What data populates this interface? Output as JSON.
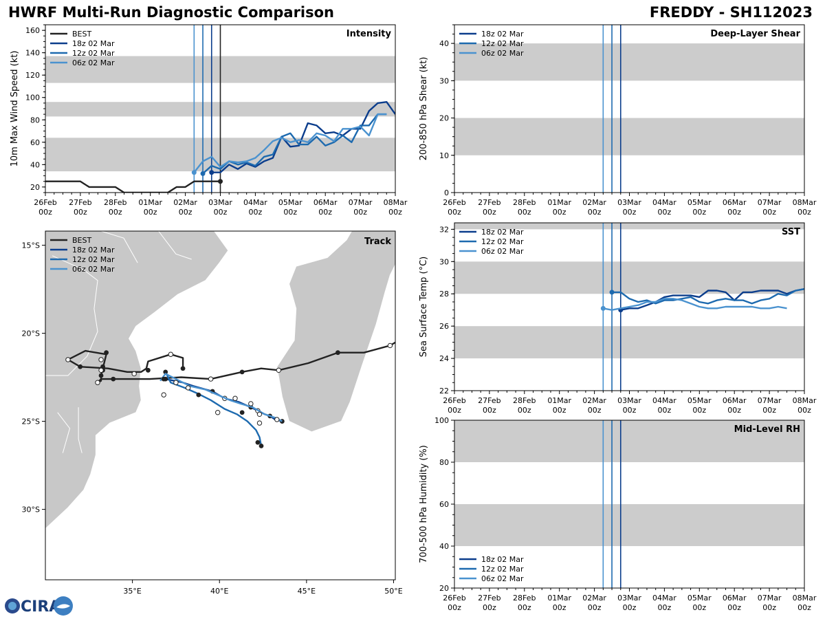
{
  "header": {
    "title": "HWRF Multi-Run Diagnostic Comparison",
    "storm": "FREDDY - SH112023"
  },
  "logo": {
    "text": "CIRA"
  },
  "colors": {
    "best": "#222222",
    "run18": "#0b3d8c",
    "run12": "#1d6aaf",
    "run06": "#4a92cf",
    "band": "#cccccc",
    "land": "#c8c8c8"
  },
  "time_axis": {
    "ticks": [
      {
        "day": "26Feb",
        "hour": "00z"
      },
      {
        "day": "27Feb",
        "hour": "00z"
      },
      {
        "day": "28Feb",
        "hour": "00z"
      },
      {
        "day": "01Mar",
        "hour": "00z"
      },
      {
        "day": "02Mar",
        "hour": "00z"
      },
      {
        "day": "03Mar",
        "hour": "00z"
      },
      {
        "day": "04Mar",
        "hour": "00z"
      },
      {
        "day": "05Mar",
        "hour": "00z"
      },
      {
        "day": "06Mar",
        "hour": "00z"
      },
      {
        "day": "07Mar",
        "hour": "00z"
      },
      {
        "day": "08Mar",
        "hour": "00z"
      }
    ],
    "range_days": [
      0,
      10
    ],
    "init_times_days": {
      "run06": 4.25,
      "run12": 4.5,
      "run18": 4.75,
      "best_last": 5.0
    }
  },
  "chart_data": [
    {
      "id": "intensity",
      "type": "line",
      "title": "Intensity",
      "ylabel": "10m Max Wind Speed (kt)",
      "ylim": [
        15,
        165
      ],
      "yticks": [
        20,
        40,
        60,
        80,
        100,
        120,
        140,
        160
      ],
      "bands": [
        [
          34,
          64
        ],
        [
          83,
          96
        ],
        [
          113,
          137
        ]
      ],
      "legend": [
        "BEST",
        "18z 02 Mar",
        "12z 02 Mar",
        "06z 02 Mar"
      ],
      "series": [
        {
          "name": "BEST",
          "key": "best",
          "x": [
            0,
            0.25,
            0.5,
            0.75,
            1,
            1.25,
            1.5,
            1.75,
            2,
            2.25,
            2.5,
            2.75,
            3,
            3.25,
            3.5,
            3.75,
            4,
            4.25,
            4.5,
            4.75,
            5
          ],
          "y": [
            25,
            25,
            25,
            25,
            25,
            20,
            20,
            20,
            20,
            15,
            15,
            15,
            15,
            15,
            15,
            20,
            20,
            25,
            25,
            25,
            25
          ],
          "end_marker": true
        },
        {
          "name": "18z 02 Mar",
          "key": "run18",
          "x": [
            4.75,
            5,
            5.25,
            5.5,
            5.75,
            6,
            6.25,
            6.5,
            6.75,
            7,
            7.25,
            7.5,
            7.75,
            8,
            8.25,
            8.5,
            8.75,
            9,
            9.25,
            9.5,
            9.75,
            10
          ],
          "y": [
            33,
            33,
            40,
            36,
            41,
            38,
            43,
            46,
            65,
            56,
            57,
            77,
            75,
            68,
            69,
            66,
            72,
            72,
            88,
            95,
            96,
            85
          ],
          "start_marker": true
        },
        {
          "name": "12z 02 Mar",
          "key": "run12",
          "x": [
            4.5,
            4.75,
            5,
            5.25,
            5.5,
            5.75,
            6,
            6.25,
            6.5,
            6.75,
            7,
            7.25,
            7.5,
            7.75,
            8,
            8.25,
            8.5,
            8.75,
            9,
            9.25,
            9.5,
            9.75
          ],
          "y": [
            32,
            39,
            36,
            43,
            40,
            42,
            39,
            47,
            49,
            65,
            68,
            58,
            58,
            65,
            57,
            60,
            66,
            60,
            75,
            75,
            85,
            85
          ],
          "start_marker": true
        },
        {
          "name": "06z 02 Mar",
          "key": "run06",
          "x": [
            4.25,
            4.5,
            4.75,
            5,
            5.25,
            5.5,
            5.75,
            6,
            6.25,
            6.5,
            6.75,
            7,
            7.25,
            7.5,
            7.75,
            8,
            8.25,
            8.5,
            8.75,
            9,
            9.25,
            9.5,
            9.75
          ],
          "y": [
            33,
            43,
            47,
            38,
            43,
            42,
            43,
            46,
            53,
            61,
            64,
            60,
            62,
            60,
            68,
            66,
            61,
            72,
            72,
            74,
            66,
            85,
            85
          ],
          "start_marker": true
        }
      ]
    },
    {
      "id": "shear",
      "type": "line",
      "title": "Deep-Layer Shear",
      "ylabel": "200-850 hPa Shear (kt)",
      "ylim": [
        0,
        45
      ],
      "yticks": [
        0,
        10,
        20,
        30,
        40
      ],
      "bands": [
        [
          10,
          20
        ],
        [
          30,
          40
        ]
      ],
      "legend": [
        "18z 02 Mar",
        "12z 02 Mar",
        "06z 02 Mar"
      ],
      "series": []
    },
    {
      "id": "sst",
      "type": "line",
      "title": "SST",
      "ylabel": "Sea Surface Temp (°C)",
      "ylim": [
        22,
        32.4
      ],
      "yticks": [
        22,
        24,
        26,
        28,
        30,
        32
      ],
      "bands": [
        [
          24,
          26
        ],
        [
          28,
          30
        ],
        [
          32,
          32.4
        ]
      ],
      "legend": [
        "18z 02 Mar",
        "12z 02 Mar",
        "06z 02 Mar"
      ],
      "series": [
        {
          "name": "18z 02 Mar",
          "key": "run18",
          "x": [
            4.75,
            5,
            5.25,
            5.5,
            5.75,
            6,
            6.25,
            6.5,
            6.75,
            7,
            7.25,
            7.5,
            7.75,
            8,
            8.25,
            8.5,
            8.75,
            9,
            9.25,
            9.5,
            9.75,
            10
          ],
          "y": [
            27.0,
            27.1,
            27.1,
            27.3,
            27.5,
            27.8,
            27.9,
            27.9,
            27.9,
            27.8,
            28.2,
            28.2,
            28.1,
            27.6,
            28.1,
            28.1,
            28.2,
            28.2,
            28.2,
            28.0,
            28.2,
            28.3
          ],
          "start_marker": true
        },
        {
          "name": "12z 02 Mar",
          "key": "run12",
          "x": [
            4.5,
            4.75,
            5,
            5.25,
            5.5,
            5.75,
            6,
            6.25,
            6.5,
            6.75,
            7,
            7.25,
            7.5,
            7.75,
            8,
            8.25,
            8.5,
            8.75,
            9,
            9.25,
            9.5,
            9.75,
            10
          ],
          "y": [
            28.1,
            28.1,
            27.7,
            27.5,
            27.6,
            27.4,
            27.6,
            27.6,
            27.7,
            27.8,
            27.5,
            27.4,
            27.6,
            27.7,
            27.6,
            27.6,
            27.4,
            27.6,
            27.7,
            28.0,
            27.9,
            28.2,
            28.3
          ],
          "start_marker": true
        },
        {
          "name": "06z 02 Mar",
          "key": "run06",
          "x": [
            4.25,
            4.5,
            4.75,
            5,
            5.25,
            5.5,
            5.75,
            6,
            6.25,
            6.5,
            6.75,
            7,
            7.25,
            7.5,
            7.75,
            8,
            8.25,
            8.5,
            8.75,
            9,
            9.25,
            9.5
          ],
          "y": [
            27.1,
            27.0,
            27.1,
            27.2,
            27.3,
            27.5,
            27.5,
            27.7,
            27.7,
            27.6,
            27.4,
            27.2,
            27.1,
            27.1,
            27.2,
            27.2,
            27.2,
            27.2,
            27.1,
            27.1,
            27.2,
            27.1
          ],
          "start_marker": true
        }
      ]
    },
    {
      "id": "rh",
      "type": "line",
      "title": "Mid-Level RH",
      "ylabel": "700-500 hPa Humidity (%)",
      "ylim": [
        20,
        100
      ],
      "yticks": [
        20,
        40,
        60,
        80,
        100
      ],
      "bands": [
        [
          40,
          60
        ],
        [
          80,
          100
        ]
      ],
      "legend": [
        "18z 02 Mar",
        "12z 02 Mar",
        "06z 02 Mar"
      ],
      "series": []
    },
    {
      "id": "track",
      "type": "scatter",
      "title": "Track",
      "lon_range": [
        30,
        50.1
      ],
      "lat_range": [
        -34,
        -14.2
      ],
      "xticks": [
        35,
        40,
        45,
        50
      ],
      "xtick_labels": [
        "35°E",
        "40°E",
        "45°E",
        "50°E"
      ],
      "yticks": [
        -15,
        -20,
        -25,
        -30
      ],
      "ytick_labels": [
        "15°S",
        "20°S",
        "25°S",
        "30°S"
      ],
      "legend": [
        "BEST",
        "18z 02 Mar",
        "12z 02 Mar",
        "06z 02 Mar"
      ],
      "series": [
        {
          "name": "BEST",
          "key": "best",
          "points": [
            [
              50.3,
              -20.4
            ],
            [
              49.8,
              -20.7
            ],
            [
              48.3,
              -21.1
            ],
            [
              46.8,
              -21.1
            ],
            [
              45.1,
              -21.7
            ],
            [
              43.4,
              -22.1
            ],
            [
              42.4,
              -22.0
            ],
            [
              41.3,
              -22.2
            ],
            [
              39.5,
              -22.6
            ],
            [
              37.8,
              -22.5
            ],
            [
              36.0,
              -22.6
            ],
            [
              34.5,
              -22.6
            ],
            [
              33.2,
              -22.6
            ],
            [
              33.0,
              -22.8
            ],
            [
              33.2,
              -22.7
            ],
            [
              33.2,
              -22.4
            ],
            [
              33.5,
              -21.2
            ],
            [
              32.3,
              -21.0
            ],
            [
              31.3,
              -21.5
            ],
            [
              32.0,
              -21.9
            ],
            [
              33.6,
              -22.0
            ],
            [
              34.7,
              -22.2
            ],
            [
              35.5,
              -22.2
            ],
            [
              35.8,
              -22.0
            ],
            [
              35.9,
              -21.6
            ],
            [
              37.2,
              -21.2
            ],
            [
              37.9,
              -21.4
            ],
            [
              37.9,
              -22.0
            ]
          ],
          "dots": [
            [
              49.8,
              -20.7
            ],
            [
              46.8,
              -21.1
            ],
            [
              43.4,
              -22.1
            ],
            [
              41.3,
              -22.2
            ],
            [
              39.5,
              -22.6
            ],
            [
              33.0,
              -22.8
            ],
            [
              33.2,
              -22.4
            ],
            [
              33.3,
              -21.9
            ],
            [
              33.3,
              -22.1
            ],
            [
              33.5,
              -21.1
            ],
            [
              33.2,
              -21.5
            ],
            [
              31.3,
              -21.5
            ],
            [
              32.0,
              -21.9
            ],
            [
              33.9,
              -22.6
            ],
            [
              35.1,
              -22.3
            ],
            [
              35.9,
              -22.1
            ],
            [
              37.2,
              -21.2
            ],
            [
              37.9,
              -22.0
            ]
          ],
          "open_dots": [
            [
              49.8,
              -20.7
            ],
            [
              43.4,
              -22.1
            ],
            [
              39.5,
              -22.6
            ],
            [
              37.2,
              -21.2
            ],
            [
              33.0,
              -22.8
            ],
            [
              33.2,
              -22.1
            ],
            [
              33.2,
              -21.5
            ],
            [
              31.3,
              -21.5
            ],
            [
              35.1,
              -22.3
            ]
          ]
        },
        {
          "name": "18z 02 Mar",
          "key": "run18",
          "points": [
            [
              36.9,
              -22.6
            ],
            [
              37.9,
              -22.8
            ],
            [
              38.5,
              -23.0
            ],
            [
              39.6,
              -23.3
            ],
            [
              40.3,
              -23.7
            ],
            [
              41.1,
              -23.9
            ],
            [
              41.8,
              -24.2
            ],
            [
              42.2,
              -24.4
            ],
            [
              42.6,
              -24.6
            ],
            [
              42.9,
              -24.7
            ],
            [
              43.2,
              -24.9
            ],
            [
              43.6,
              -25.0
            ]
          ],
          "dots": [
            [
              36.9,
              -22.6
            ],
            [
              39.6,
              -23.3
            ],
            [
              41.8,
              -24.2
            ],
            [
              42.9,
              -24.7
            ],
            [
              43.6,
              -25.0
            ]
          ],
          "open_dots": [
            [
              40.3,
              -23.7
            ],
            [
              42.2,
              -24.4
            ]
          ]
        },
        {
          "name": "12z 02 Mar",
          "key": "run12",
          "points": [
            [
              36.9,
              -22.2
            ],
            [
              37.2,
              -22.8
            ],
            [
              38.0,
              -23.1
            ],
            [
              38.7,
              -23.4
            ],
            [
              39.5,
              -23.8
            ],
            [
              40.3,
              -24.3
            ],
            [
              41.0,
              -24.6
            ],
            [
              41.6,
              -25.0
            ],
            [
              42.1,
              -25.5
            ],
            [
              42.3,
              -25.9
            ],
            [
              42.4,
              -26.4
            ]
          ],
          "dots": [
            [
              36.9,
              -22.2
            ],
            [
              38.8,
              -23.5
            ],
            [
              41.3,
              -24.5
            ],
            [
              42.2,
              -26.2
            ],
            [
              42.4,
              -26.4
            ]
          ],
          "open_dots": [
            [
              39.9,
              -24.5
            ],
            [
              42.3,
              -25.1
            ]
          ]
        },
        {
          "name": "06z 02 Mar",
          "key": "run06",
          "points": [
            [
              36.6,
              -22.7
            ],
            [
              36.9,
              -22.3
            ],
            [
              37.5,
              -22.6
            ],
            [
              38.3,
              -23.0
            ],
            [
              39.2,
              -23.2
            ],
            [
              39.9,
              -23.5
            ],
            [
              40.6,
              -23.8
            ],
            [
              41.2,
              -24.0
            ],
            [
              41.9,
              -24.2
            ],
            [
              42.6,
              -24.6
            ],
            [
              43.2,
              -24.8
            ],
            [
              43.6,
              -25.0
            ]
          ],
          "dots": [
            [
              36.8,
              -22.6
            ],
            [
              41.8,
              -24.0
            ]
          ],
          "open_dots": [
            [
              36.8,
              -23.5
            ],
            [
              38.2,
              -23.1
            ],
            [
              37.5,
              -22.8
            ],
            [
              40.9,
              -23.7
            ],
            [
              41.8,
              -24.0
            ],
            [
              42.3,
              -24.6
            ],
            [
              43.3,
              -24.9
            ]
          ]
        }
      ]
    }
  ]
}
